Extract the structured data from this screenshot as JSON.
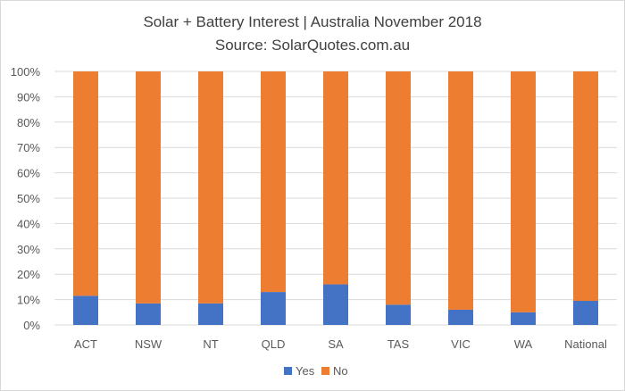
{
  "chart_data": {
    "type": "bar",
    "stacked": true,
    "title": "Solar + Battery Interest | Australia November 2018",
    "subtitle": "Source: SolarQuotes.com.au",
    "categories": [
      "ACT",
      "NSW",
      "NT",
      "QLD",
      "SA",
      "TAS",
      "VIC",
      "WA",
      "National"
    ],
    "series": [
      {
        "name": "Yes",
        "color": "#4472c4",
        "values": [
          11.5,
          8.5,
          8.5,
          13,
          16,
          8,
          6,
          5,
          9.5
        ]
      },
      {
        "name": "No",
        "color": "#ed7d31",
        "values": [
          88.5,
          91.5,
          91.5,
          87,
          84,
          92,
          94,
          95,
          90.5
        ]
      }
    ],
    "ylim": [
      0,
      100
    ],
    "yticks": [
      "0%",
      "10%",
      "20%",
      "30%",
      "40%",
      "50%",
      "60%",
      "70%",
      "80%",
      "90%",
      "100%"
    ],
    "grid": true,
    "legend_position": "bottom"
  }
}
